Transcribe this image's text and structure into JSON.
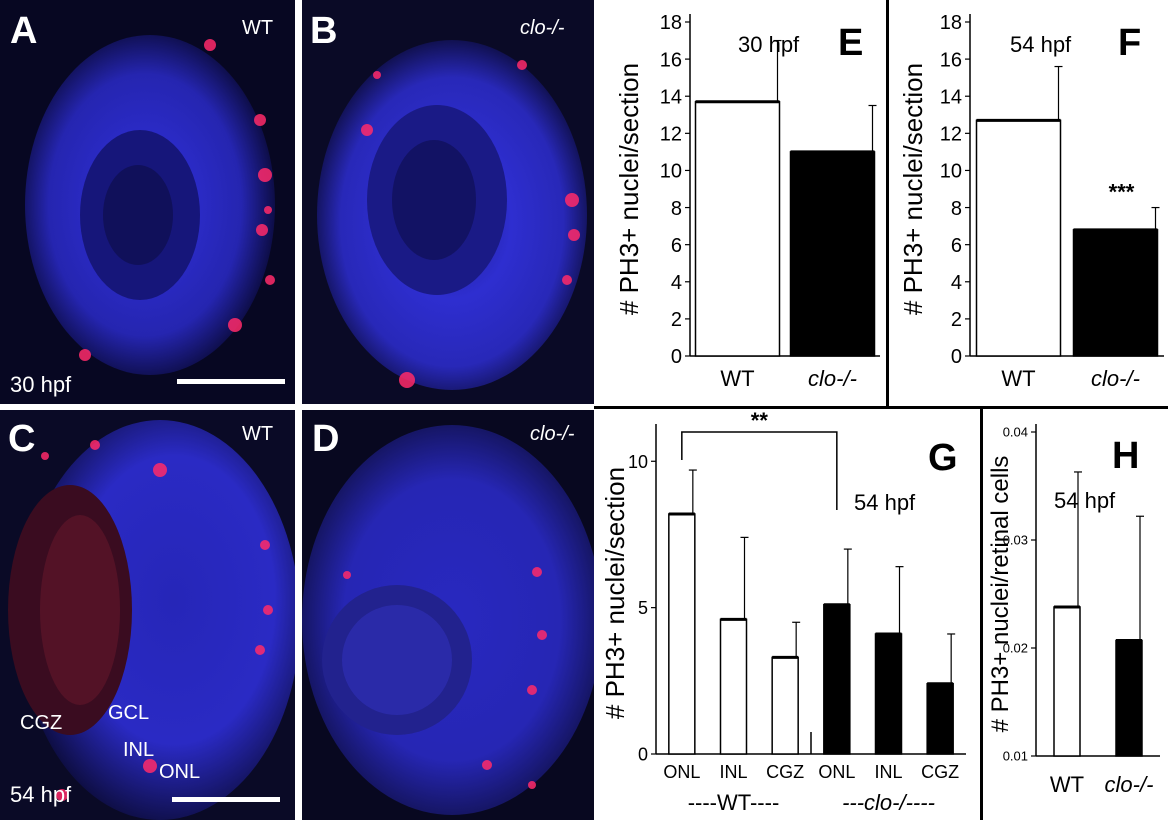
{
  "panels": {
    "A": {
      "label": "A",
      "genotype": "WT",
      "stage": "30 hpf"
    },
    "B": {
      "label": "B",
      "genotype": "clo-/-"
    },
    "C": {
      "label": "C",
      "genotype": "WT",
      "stage": "54 hpf",
      "layers": [
        "CGZ",
        "GCL",
        "INL",
        "ONL"
      ]
    },
    "D": {
      "label": "D",
      "genotype": "clo-/-"
    }
  },
  "colors": {
    "nuclei_stain": "#2a2adf",
    "ph3_stain": "#ff2a5a",
    "bar_wt": "#ffffff",
    "bar_mutant": "#000000"
  },
  "chart_data": [
    {
      "panel": "E",
      "type": "bar",
      "title": "30 hpf",
      "ylabel": "# PH3+ nuclei/section",
      "categories": [
        "WT",
        "clo-/-"
      ],
      "values": [
        13.7,
        11.0
      ],
      "errors": [
        3.3,
        2.5
      ],
      "ylim": [
        0,
        18
      ],
      "yticks": [
        0,
        2,
        4,
        6,
        8,
        10,
        12,
        14,
        16,
        18
      ],
      "fills": [
        "#ffffff",
        "#000000"
      ],
      "grid": false
    },
    {
      "panel": "F",
      "type": "bar",
      "title": "54 hpf",
      "ylabel": "# PH3+ nuclei/section",
      "categories": [
        "WT",
        "clo-/-"
      ],
      "values": [
        12.7,
        6.8
      ],
      "errors": [
        2.9,
        1.2
      ],
      "ylim": [
        0,
        18
      ],
      "yticks": [
        0,
        2,
        4,
        6,
        8,
        10,
        12,
        14,
        16,
        18
      ],
      "fills": [
        "#ffffff",
        "#000000"
      ],
      "annotation": "***",
      "grid": false
    },
    {
      "panel": "G",
      "type": "bar",
      "title": "54 hpf",
      "ylabel": "# PH3+ nuclei/section",
      "categories": [
        "ONL",
        "INL",
        "CGZ",
        "ONL",
        "INL",
        "CGZ"
      ],
      "groups": [
        "----WT----",
        "---clo-/----"
      ],
      "values": [
        8.2,
        4.6,
        3.3,
        5.1,
        4.1,
        2.4
      ],
      "errors": [
        1.5,
        2.8,
        1.2,
        1.9,
        2.3,
        1.7
      ],
      "ylim": [
        0,
        11
      ],
      "yticks": [
        0,
        5,
        10
      ],
      "fills": [
        "#ffffff",
        "#ffffff",
        "#ffffff",
        "#000000",
        "#000000",
        "#000000"
      ],
      "significance": "**",
      "grid": false
    },
    {
      "panel": "H",
      "type": "bar",
      "title": "54 hpf",
      "ylabel": "# PH3+ nuclei/retinal cells",
      "categories": [
        "WT",
        "clo-/-"
      ],
      "values": [
        0.0238,
        0.0207
      ],
      "errors": [
        0.0125,
        0.0115
      ],
      "ylim": [
        0.01,
        0.04
      ],
      "yticks": [
        "0.01",
        "0.02",
        "0.03",
        "0.04"
      ],
      "fills": [
        "#ffffff",
        "#000000"
      ],
      "grid": false
    }
  ]
}
